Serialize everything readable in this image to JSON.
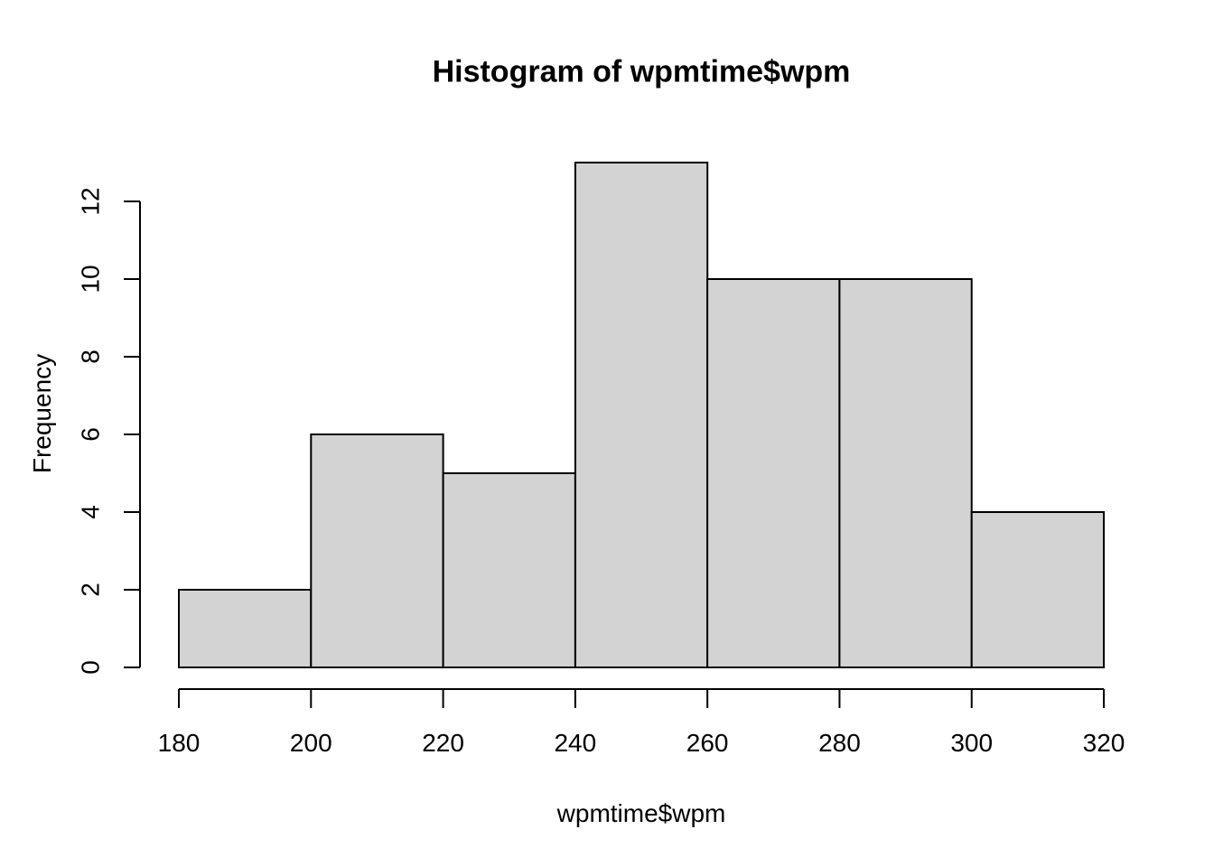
{
  "chart_data": {
    "type": "bar",
    "subtype": "histogram",
    "title": "Histogram of wpmtime$wpm",
    "xlabel": "wpmtime$wpm",
    "ylabel": "Frequency",
    "bin_edges": [
      180,
      200,
      220,
      240,
      260,
      280,
      300,
      320
    ],
    "counts": [
      2,
      6,
      5,
      13,
      10,
      10,
      4
    ],
    "x_ticks": [
      "180",
      "200",
      "220",
      "240",
      "260",
      "280",
      "300",
      "320"
    ],
    "x_tick_values": [
      180,
      200,
      220,
      240,
      260,
      280,
      300,
      320
    ],
    "y_ticks": [
      "0",
      "2",
      "4",
      "6",
      "8",
      "10",
      "12"
    ],
    "y_tick_values": [
      0,
      2,
      4,
      6,
      8,
      10,
      12
    ],
    "xlim": [
      180,
      320
    ],
    "ylim": [
      0,
      13
    ],
    "grid": false,
    "legend_position": "none",
    "bar_fill": "#d3d3d3",
    "bar_stroke": "#000000",
    "axis_color": "#000000",
    "text_color": "#000000",
    "background": "#ffffff"
  }
}
